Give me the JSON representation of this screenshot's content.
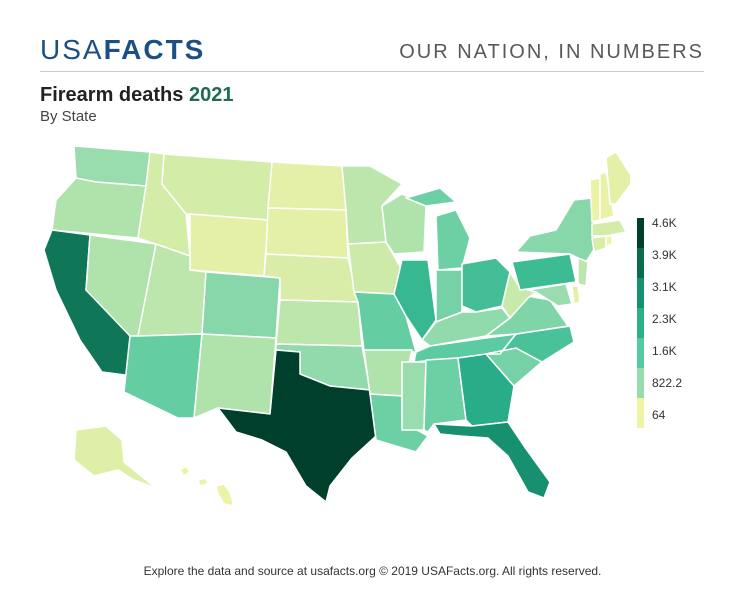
{
  "header": {
    "logo_part1": "USA",
    "logo_part2": "FACTS",
    "tagline": "OUR NATION, IN NUMBERS"
  },
  "chart": {
    "title": "Firearm deaths",
    "title_year": "2021",
    "subtitle": "By State"
  },
  "legend": {
    "labels": [
      "4.6K",
      "3.9K",
      "3.1K",
      "2.3K",
      "1.6K",
      "822.2",
      "64"
    ],
    "colors": [
      "#003f2c",
      "#0b6b4d",
      "#169170",
      "#2bb08a",
      "#55c99f",
      "#97dcae",
      "#eef3a6"
    ]
  },
  "footer": {
    "text": "Explore the data and source at usafacts.org © 2019 USAFacts.org. All rights reserved."
  },
  "chart_data": {
    "type": "choropleth",
    "scale": {
      "min": 64,
      "max": 4600
    },
    "states": {
      "TX": 4600,
      "CA": 3600,
      "FL": 3100,
      "GA": 2400,
      "IL": 2100,
      "PA": 2000,
      "OH": 1900,
      "NC": 1800,
      "TN": 1500,
      "AZ": 1400,
      "MO": 1400,
      "LA": 1300,
      "AL": 1300,
      "MI": 1300,
      "SC": 1200,
      "IN": 1200,
      "VA": 1100,
      "NY": 1000,
      "CO": 1000,
      "OK": 900,
      "KY": 900,
      "MS": 800,
      "WA": 800,
      "MD": 800,
      "AR": 600,
      "NM": 600,
      "NV": 600,
      "OR": 600,
      "WI": 600,
      "MN": 500,
      "UT": 500,
      "KS": 500,
      "WV": 400,
      "NJ": 500,
      "AK": 200,
      "ID": 300,
      "MT": 300,
      "IA": 350,
      "NE": 250,
      "WY": 150,
      "SD": 150,
      "ND": 150,
      "ME": 150,
      "NH": 120,
      "VT": 90,
      "MA": 300,
      "CT": 250,
      "RI": 64,
      "DE": 150,
      "HI": 70
    }
  }
}
